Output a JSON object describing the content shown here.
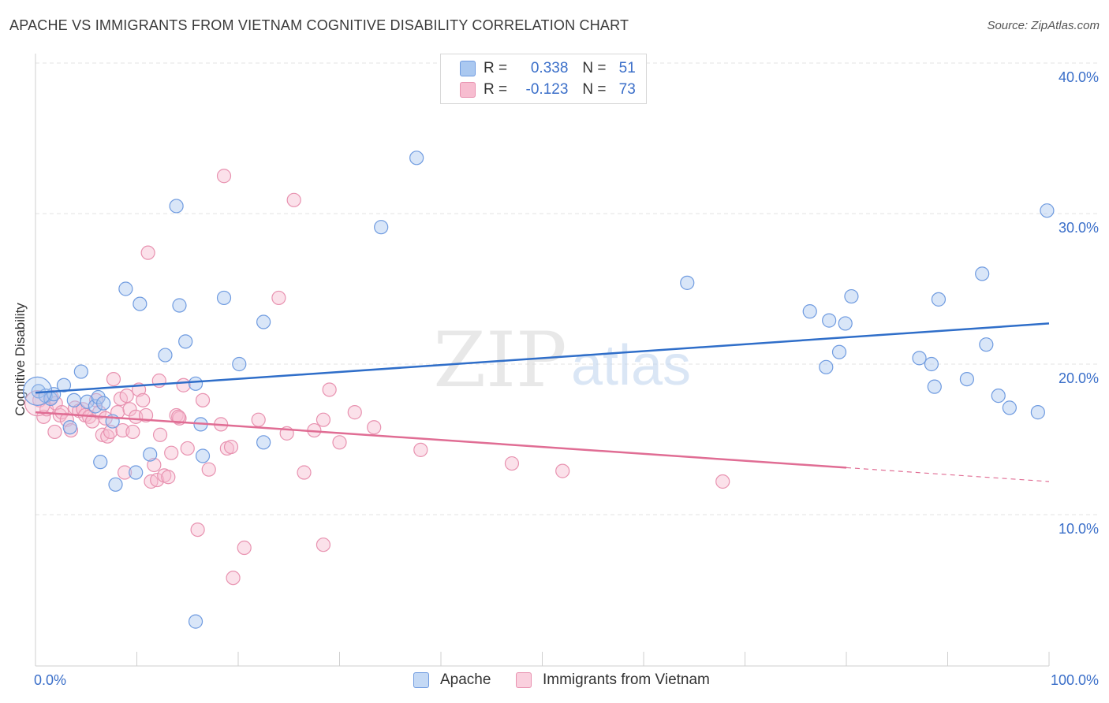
{
  "title": "APACHE VS IMMIGRANTS FROM VIETNAM COGNITIVE DISABILITY CORRELATION CHART",
  "source": "Source: ZipAtlas.com",
  "watermark": {
    "zip": "ZIP",
    "atlas": "atlas"
  },
  "legend": {
    "rows": [
      {
        "r_label": "R =",
        "r_value": "0.338",
        "n_label": "N =",
        "n_value": "51"
      },
      {
        "r_label": "R =",
        "r_value": "-0.123",
        "n_label": "N =",
        "n_value": "73"
      }
    ]
  },
  "bottom_legend": {
    "apache": "Apache",
    "vietnam": "Immigrants from Vietnam"
  },
  "colors": {
    "apache_fill": "#aac8f0",
    "apache_stroke": "#6f9be0",
    "apache_line": "#2f6ec9",
    "vietnam_fill": "#f7bdd0",
    "vietnam_stroke": "#e892b0",
    "vietnam_line": "#e06d94",
    "grid": "#e3e3e3",
    "tick_label": "#3b6fc9"
  },
  "chart_data": {
    "type": "scatter",
    "title": "APACHE VS IMMIGRANTS FROM VIETNAM COGNITIVE DISABILITY CORRELATION CHART",
    "xlabel": "",
    "ylabel": "Cognitive Disability",
    "xlim": [
      0,
      100
    ],
    "ylim": [
      0,
      42
    ],
    "x_tick_labels": [
      "0.0%",
      "100.0%"
    ],
    "y_ticks": [
      10,
      20,
      30,
      40
    ],
    "y_tick_labels": [
      "10.0%",
      "20.0%",
      "30.0%",
      "40.0%"
    ],
    "grid": true,
    "legend_position": "top-center",
    "series": [
      {
        "name": "Apache",
        "r": 0.338,
        "n": 51,
        "trend": {
          "x0": 0,
          "y0": 18.1,
          "x1": 100,
          "y1": 22.7,
          "dashed_from": null
        },
        "points": [
          [
            0.3,
            18.2
          ],
          [
            1.0,
            17.9
          ],
          [
            1.5,
            17.7
          ],
          [
            1.8,
            18.0
          ],
          [
            2.8,
            18.6
          ],
          [
            3.4,
            15.8
          ],
          [
            3.8,
            17.6
          ],
          [
            4.5,
            19.5
          ],
          [
            5.1,
            17.5
          ],
          [
            5.9,
            17.2
          ],
          [
            6.2,
            17.8
          ],
          [
            6.4,
            13.5
          ],
          [
            6.7,
            17.4
          ],
          [
            7.6,
            16.2
          ],
          [
            7.9,
            12.0
          ],
          [
            8.9,
            25.0
          ],
          [
            9.9,
            12.8
          ],
          [
            10.3,
            24.0
          ],
          [
            11.3,
            14.0
          ],
          [
            12.8,
            20.6
          ],
          [
            13.9,
            30.5
          ],
          [
            14.2,
            23.9
          ],
          [
            14.8,
            21.5
          ],
          [
            15.8,
            18.7
          ],
          [
            16.3,
            16.0
          ],
          [
            16.5,
            13.9
          ],
          [
            18.6,
            24.4
          ],
          [
            20.1,
            20.0
          ],
          [
            22.5,
            22.8
          ],
          [
            22.5,
            14.8
          ],
          [
            34.1,
            29.1
          ],
          [
            37.6,
            33.7
          ],
          [
            64.3,
            25.4
          ],
          [
            76.4,
            23.5
          ],
          [
            78.0,
            19.8
          ],
          [
            78.3,
            22.9
          ],
          [
            79.3,
            20.8
          ],
          [
            79.9,
            22.7
          ],
          [
            80.5,
            24.5
          ],
          [
            87.2,
            20.4
          ],
          [
            88.4,
            20.0
          ],
          [
            88.7,
            18.5
          ],
          [
            89.1,
            24.3
          ],
          [
            91.9,
            19.0
          ],
          [
            93.4,
            26.0
          ],
          [
            93.8,
            21.3
          ],
          [
            95.0,
            17.9
          ],
          [
            96.1,
            17.1
          ],
          [
            98.9,
            16.8
          ],
          [
            99.8,
            30.2
          ],
          [
            15.8,
            2.9
          ]
        ]
      },
      {
        "name": "Immigrants from Vietnam",
        "r": -0.123,
        "n": 73,
        "trend": {
          "x0": 0,
          "y0": 16.8,
          "x1": 100,
          "y1": 12.2,
          "dashed_from": 80
        },
        "points": [
          [
            0.4,
            17.6
          ],
          [
            0.8,
            16.5
          ],
          [
            1.1,
            17.0
          ],
          [
            1.6,
            17.8
          ],
          [
            1.9,
            15.5
          ],
          [
            2.0,
            17.4
          ],
          [
            2.4,
            16.6
          ],
          [
            2.6,
            16.8
          ],
          [
            3.1,
            16.3
          ],
          [
            3.5,
            15.6
          ],
          [
            3.9,
            17.1
          ],
          [
            4.3,
            16.9
          ],
          [
            4.7,
            17.0
          ],
          [
            4.9,
            16.6
          ],
          [
            5.3,
            16.5
          ],
          [
            5.6,
            16.2
          ],
          [
            6.0,
            17.6
          ],
          [
            6.3,
            16.8
          ],
          [
            6.6,
            15.3
          ],
          [
            6.9,
            16.4
          ],
          [
            7.1,
            15.2
          ],
          [
            7.4,
            15.5
          ],
          [
            7.7,
            19.0
          ],
          [
            8.1,
            16.8
          ],
          [
            8.4,
            17.7
          ],
          [
            8.6,
            15.6
          ],
          [
            8.8,
            12.8
          ],
          [
            9.0,
            17.9
          ],
          [
            9.3,
            17.0
          ],
          [
            9.6,
            15.5
          ],
          [
            9.9,
            16.5
          ],
          [
            10.2,
            18.3
          ],
          [
            10.6,
            17.6
          ],
          [
            10.9,
            16.6
          ],
          [
            11.1,
            27.4
          ],
          [
            11.4,
            12.2
          ],
          [
            11.7,
            13.3
          ],
          [
            12.0,
            12.3
          ],
          [
            12.3,
            15.3
          ],
          [
            12.7,
            12.6
          ],
          [
            13.1,
            12.5
          ],
          [
            13.4,
            14.1
          ],
          [
            13.9,
            16.6
          ],
          [
            14.2,
            16.4
          ],
          [
            14.6,
            18.6
          ],
          [
            15.0,
            14.4
          ],
          [
            16.0,
            9.0
          ],
          [
            16.5,
            17.6
          ],
          [
            17.1,
            13.0
          ],
          [
            18.3,
            16.0
          ],
          [
            18.6,
            32.5
          ],
          [
            18.9,
            14.4
          ],
          [
            19.3,
            14.5
          ],
          [
            19.5,
            5.8
          ],
          [
            20.6,
            7.8
          ],
          [
            22.0,
            16.3
          ],
          [
            24.0,
            24.4
          ],
          [
            24.8,
            15.4
          ],
          [
            25.5,
            30.9
          ],
          [
            26.5,
            12.8
          ],
          [
            27.5,
            15.6
          ],
          [
            28.4,
            16.3
          ],
          [
            28.4,
            8.0
          ],
          [
            29.0,
            18.3
          ],
          [
            30.0,
            14.8
          ],
          [
            31.5,
            16.8
          ],
          [
            33.4,
            15.8
          ],
          [
            38.0,
            14.3
          ],
          [
            47.0,
            13.4
          ],
          [
            52.0,
            12.9
          ],
          [
            67.8,
            12.2
          ],
          [
            12.2,
            18.9
          ],
          [
            14.1,
            16.5
          ]
        ]
      }
    ]
  }
}
